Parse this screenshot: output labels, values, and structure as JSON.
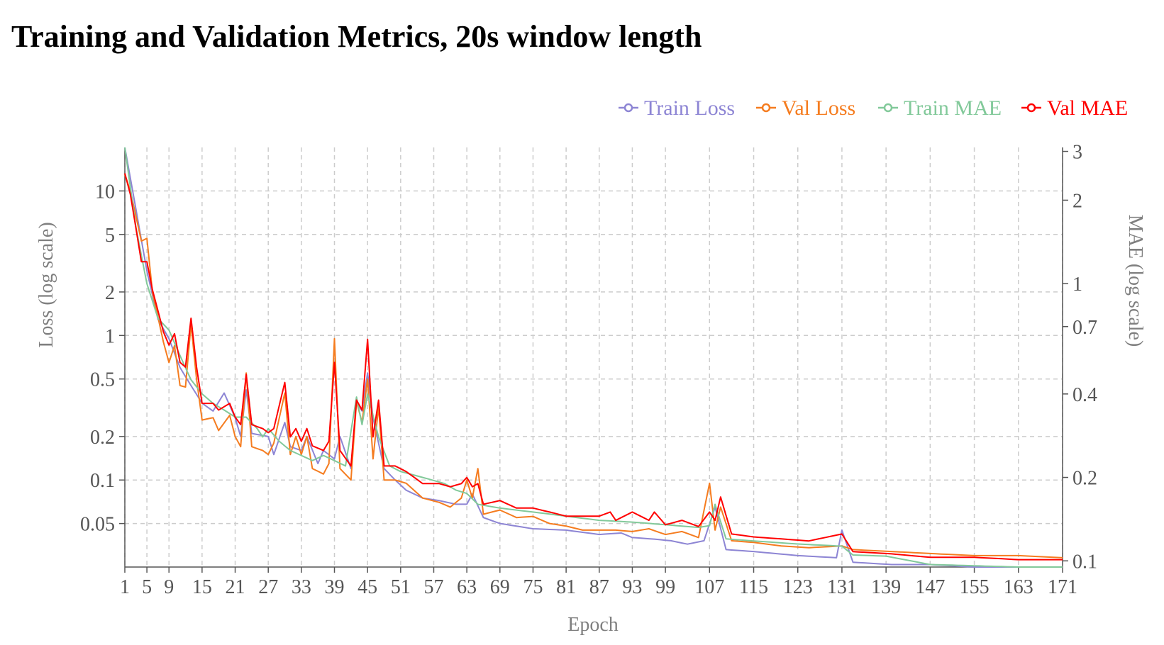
{
  "chart_data": {
    "type": "line",
    "title": "Training and Validation Metrics, 20s window length",
    "xlabel": "Epoch",
    "ylabel_left": "Loss (log scale)",
    "ylabel_right": "MAE (log scale)",
    "x_range": [
      1,
      171
    ],
    "y_left_range": [
      0.025,
      20
    ],
    "y_right_range": [
      0.095,
      3.1
    ],
    "grid": true,
    "legend_position": "top-right",
    "x_ticks": [
      1,
      5,
      9,
      15,
      21,
      27,
      33,
      39,
      45,
      51,
      57,
      63,
      69,
      75,
      81,
      87,
      93,
      99,
      107,
      115,
      123,
      131,
      139,
      147,
      155,
      163,
      171
    ],
    "y_left_ticks": [
      {
        "value": 10,
        "label": "10"
      },
      {
        "value": 5,
        "label": "5"
      },
      {
        "value": 2,
        "label": "2"
      },
      {
        "value": 1,
        "label": "1"
      },
      {
        "value": 0.5,
        "label": "0.5"
      },
      {
        "value": 0.2,
        "label": "0.2"
      },
      {
        "value": 0.1,
        "label": "0.1"
      },
      {
        "value": 0.05,
        "label": "0.05"
      }
    ],
    "y_right_ticks": [
      {
        "value": 3,
        "label": "3"
      },
      {
        "value": 2,
        "label": "2"
      },
      {
        "value": 1,
        "label": "1"
      },
      {
        "value": 0.7,
        "label": "0.7"
      },
      {
        "value": 0.4,
        "label": "0.4"
      },
      {
        "value": 0.2,
        "label": "0.2"
      },
      {
        "value": 0.1,
        "label": "0.1"
      }
    ],
    "series": [
      {
        "name": "Train Loss",
        "axis": "left",
        "color": "#8d85d4",
        "key": [
          [
            1,
            20
          ],
          [
            3,
            7.5
          ],
          [
            5,
            2.8
          ],
          [
            7,
            1.3
          ],
          [
            9,
            0.95
          ],
          [
            11,
            0.6
          ],
          [
            13,
            0.45
          ],
          [
            15,
            0.34
          ],
          [
            17,
            0.3
          ],
          [
            19,
            0.4
          ],
          [
            21,
            0.27
          ],
          [
            22,
            0.2
          ],
          [
            23,
            0.42
          ],
          [
            24,
            0.21
          ],
          [
            27,
            0.2
          ],
          [
            28,
            0.15
          ],
          [
            30,
            0.25
          ],
          [
            31,
            0.17
          ],
          [
            33,
            0.16
          ],
          [
            34,
            0.2
          ],
          [
            36,
            0.13
          ],
          [
            37,
            0.16
          ],
          [
            39,
            0.14
          ],
          [
            40,
            0.2
          ],
          [
            42,
            0.12
          ],
          [
            43,
            0.35
          ],
          [
            44,
            0.3
          ],
          [
            45,
            0.55
          ],
          [
            46,
            0.27
          ],
          [
            48,
            0.12
          ],
          [
            50,
            0.1
          ],
          [
            52,
            0.085
          ],
          [
            55,
            0.075
          ],
          [
            58,
            0.072
          ],
          [
            61,
            0.068
          ],
          [
            63,
            0.068
          ],
          [
            64,
            0.08
          ],
          [
            66,
            0.055
          ],
          [
            69,
            0.05
          ],
          [
            75,
            0.046
          ],
          [
            81,
            0.045
          ],
          [
            87,
            0.042
          ],
          [
            91,
            0.043
          ],
          [
            93,
            0.04
          ],
          [
            97,
            0.039
          ],
          [
            100,
            0.038
          ],
          [
            103,
            0.036
          ],
          [
            106,
            0.038
          ],
          [
            108,
            0.065
          ],
          [
            110,
            0.033
          ],
          [
            115,
            0.032
          ],
          [
            123,
            0.03
          ],
          [
            130,
            0.029
          ],
          [
            131,
            0.045
          ],
          [
            133,
            0.027
          ],
          [
            140,
            0.026
          ],
          [
            147,
            0.026
          ],
          [
            155,
            0.025
          ],
          [
            171,
            0.025
          ]
        ]
      },
      {
        "name": "Val Loss",
        "axis": "left",
        "color": "#f57c1f",
        "key": [
          [
            1,
            13
          ],
          [
            2,
            10
          ],
          [
            4,
            4.5
          ],
          [
            5,
            4.7
          ],
          [
            6,
            2
          ],
          [
            8,
            0.9
          ],
          [
            9,
            0.65
          ],
          [
            10,
            0.85
          ],
          [
            11,
            0.45
          ],
          [
            12,
            0.44
          ],
          [
            13,
            1.2
          ],
          [
            14,
            0.5
          ],
          [
            15,
            0.26
          ],
          [
            17,
            0.27
          ],
          [
            18,
            0.22
          ],
          [
            20,
            0.28
          ],
          [
            21,
            0.2
          ],
          [
            22,
            0.17
          ],
          [
            23,
            0.55
          ],
          [
            24,
            0.17
          ],
          [
            26,
            0.16
          ],
          [
            27,
            0.15
          ],
          [
            28,
            0.18
          ],
          [
            30,
            0.4
          ],
          [
            31,
            0.15
          ],
          [
            32,
            0.2
          ],
          [
            33,
            0.15
          ],
          [
            34,
            0.2
          ],
          [
            35,
            0.12
          ],
          [
            37,
            0.11
          ],
          [
            38,
            0.13
          ],
          [
            39,
            0.95
          ],
          [
            40,
            0.12
          ],
          [
            42,
            0.1
          ],
          [
            43,
            0.35
          ],
          [
            44,
            0.25
          ],
          [
            45,
            0.5
          ],
          [
            46,
            0.14
          ],
          [
            47,
            0.32
          ],
          [
            48,
            0.1
          ],
          [
            50,
            0.1
          ],
          [
            52,
            0.095
          ],
          [
            55,
            0.075
          ],
          [
            58,
            0.07
          ],
          [
            60,
            0.065
          ],
          [
            62,
            0.075
          ],
          [
            63,
            0.1
          ],
          [
            64,
            0.075
          ],
          [
            65,
            0.12
          ],
          [
            66,
            0.058
          ],
          [
            69,
            0.062
          ],
          [
            72,
            0.055
          ],
          [
            75,
            0.056
          ],
          [
            78,
            0.05
          ],
          [
            81,
            0.048
          ],
          [
            84,
            0.045
          ],
          [
            87,
            0.045
          ],
          [
            90,
            0.045
          ],
          [
            93,
            0.044
          ],
          [
            96,
            0.046
          ],
          [
            99,
            0.042
          ],
          [
            102,
            0.044
          ],
          [
            105,
            0.04
          ],
          [
            107,
            0.095
          ],
          [
            108,
            0.045
          ],
          [
            109,
            0.065
          ],
          [
            111,
            0.038
          ],
          [
            115,
            0.037
          ],
          [
            120,
            0.035
          ],
          [
            125,
            0.034
          ],
          [
            131,
            0.035
          ],
          [
            133,
            0.033
          ],
          [
            140,
            0.032
          ],
          [
            147,
            0.031
          ],
          [
            155,
            0.03
          ],
          [
            163,
            0.03
          ],
          [
            171,
            0.029
          ]
        ]
      },
      {
        "name": "Train MAE",
        "axis": "right",
        "color": "#82c99a",
        "key": [
          [
            1,
            3.1
          ],
          [
            3,
            1.6
          ],
          [
            5,
            1.0
          ],
          [
            7,
            0.75
          ],
          [
            9,
            0.68
          ],
          [
            11,
            0.55
          ],
          [
            13,
            0.45
          ],
          [
            15,
            0.4
          ],
          [
            17,
            0.37
          ],
          [
            19,
            0.35
          ],
          [
            21,
            0.33
          ],
          [
            23,
            0.33
          ],
          [
            25,
            0.3
          ],
          [
            26,
            0.28
          ],
          [
            27,
            0.3
          ],
          [
            29,
            0.27
          ],
          [
            31,
            0.25
          ],
          [
            33,
            0.24
          ],
          [
            35,
            0.23
          ],
          [
            37,
            0.24
          ],
          [
            39,
            0.23
          ],
          [
            41,
            0.22
          ],
          [
            43,
            0.39
          ],
          [
            44,
            0.31
          ],
          [
            45,
            0.4
          ],
          [
            47,
            0.28
          ],
          [
            49,
            0.22
          ],
          [
            51,
            0.21
          ],
          [
            55,
            0.2
          ],
          [
            59,
            0.19
          ],
          [
            61,
            0.18
          ],
          [
            63,
            0.175
          ],
          [
            65,
            0.16
          ],
          [
            69,
            0.155
          ],
          [
            75,
            0.15
          ],
          [
            81,
            0.145
          ],
          [
            87,
            0.14
          ],
          [
            93,
            0.138
          ],
          [
            99,
            0.135
          ],
          [
            105,
            0.132
          ],
          [
            107,
            0.134
          ],
          [
            108,
            0.16
          ],
          [
            110,
            0.12
          ],
          [
            115,
            0.118
          ],
          [
            123,
            0.115
          ],
          [
            131,
            0.113
          ],
          [
            133,
            0.105
          ],
          [
            139,
            0.104
          ],
          [
            147,
            0.097
          ],
          [
            155,
            0.096
          ],
          [
            163,
            0.095
          ],
          [
            171,
            0.095
          ]
        ]
      },
      {
        "name": "Val MAE",
        "axis": "right",
        "color": "#ff0000",
        "key": [
          [
            1,
            2.5
          ],
          [
            2,
            2.1
          ],
          [
            4,
            1.2
          ],
          [
            5,
            1.2
          ],
          [
            6,
            0.95
          ],
          [
            8,
            0.67
          ],
          [
            9,
            0.6
          ],
          [
            10,
            0.66
          ],
          [
            11,
            0.52
          ],
          [
            12,
            0.5
          ],
          [
            13,
            0.75
          ],
          [
            14,
            0.5
          ],
          [
            15,
            0.37
          ],
          [
            17,
            0.37
          ],
          [
            18,
            0.35
          ],
          [
            20,
            0.37
          ],
          [
            21,
            0.33
          ],
          [
            22,
            0.31
          ],
          [
            23,
            0.47
          ],
          [
            24,
            0.31
          ],
          [
            26,
            0.3
          ],
          [
            27,
            0.29
          ],
          [
            28,
            0.3
          ],
          [
            30,
            0.44
          ],
          [
            31,
            0.28
          ],
          [
            32,
            0.3
          ],
          [
            33,
            0.27
          ],
          [
            34,
            0.3
          ],
          [
            35,
            0.26
          ],
          [
            37,
            0.25
          ],
          [
            38,
            0.27
          ],
          [
            39,
            0.52
          ],
          [
            40,
            0.25
          ],
          [
            42,
            0.22
          ],
          [
            43,
            0.38
          ],
          [
            44,
            0.35
          ],
          [
            45,
            0.63
          ],
          [
            46,
            0.28
          ],
          [
            47,
            0.38
          ],
          [
            48,
            0.22
          ],
          [
            50,
            0.22
          ],
          [
            52,
            0.21
          ],
          [
            55,
            0.19
          ],
          [
            58,
            0.19
          ],
          [
            60,
            0.185
          ],
          [
            62,
            0.19
          ],
          [
            63,
            0.2
          ],
          [
            64,
            0.185
          ],
          [
            65,
            0.19
          ],
          [
            66,
            0.16
          ],
          [
            69,
            0.165
          ],
          [
            72,
            0.155
          ],
          [
            75,
            0.155
          ],
          [
            78,
            0.15
          ],
          [
            81,
            0.145
          ],
          [
            84,
            0.145
          ],
          [
            87,
            0.145
          ],
          [
            89,
            0.15
          ],
          [
            90,
            0.14
          ],
          [
            93,
            0.15
          ],
          [
            96,
            0.14
          ],
          [
            97,
            0.15
          ],
          [
            99,
            0.135
          ],
          [
            102,
            0.14
          ],
          [
            105,
            0.133
          ],
          [
            107,
            0.15
          ],
          [
            108,
            0.14
          ],
          [
            109,
            0.17
          ],
          [
            111,
            0.125
          ],
          [
            115,
            0.122
          ],
          [
            120,
            0.12
          ],
          [
            125,
            0.118
          ],
          [
            131,
            0.125
          ],
          [
            133,
            0.108
          ],
          [
            140,
            0.106
          ],
          [
            147,
            0.103
          ],
          [
            155,
            0.103
          ],
          [
            163,
            0.101
          ],
          [
            171,
            0.101
          ]
        ]
      }
    ]
  }
}
